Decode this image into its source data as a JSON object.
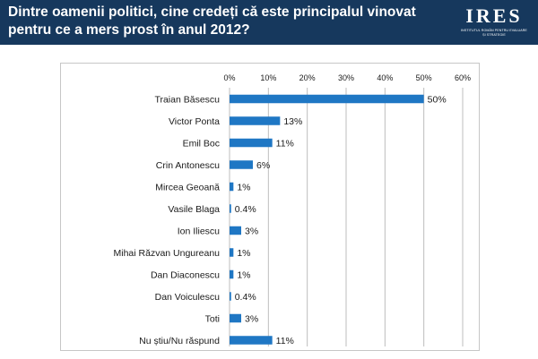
{
  "header": {
    "title_line1": "Dintre oamenii politici, cine credeți că este principalul vinovat",
    "title_line2": "pentru ce a mers prost în anul 2012?",
    "logo_word": "IRES",
    "logo_sub": "Institutul Român pentru Evaluare și Strategie"
  },
  "colors": {
    "header_bg": "#16385d",
    "bar": "#1f77c4",
    "grid": "#bdbdbd"
  },
  "chart_data": {
    "type": "bar",
    "orientation": "horizontal",
    "title": "Dintre oamenii politici, cine credeți că este principalul vinovat pentru ce a mers prost în anul 2012?",
    "categories": [
      "Traian Băsescu",
      "Victor Ponta",
      "Emil Boc",
      "Crin Antonescu",
      "Mircea Geoană",
      "Vasile Blaga",
      "Ion Iliescu",
      "Mihai Răzvan Ungureanu",
      "Dan Diaconescu",
      "Dan Voiculescu",
      "Toti",
      "Nu știu/Nu răspund"
    ],
    "values": [
      50,
      13,
      11,
      6,
      1,
      0.4,
      3,
      1,
      1,
      0.4,
      3,
      11
    ],
    "value_labels": [
      "50%",
      "13%",
      "11%",
      "6%",
      "1%",
      "0.4%",
      "3%",
      "1%",
      "1%",
      "0.4%",
      "3%",
      "11%"
    ],
    "xlim": [
      0,
      60
    ],
    "xticks": [
      0,
      10,
      20,
      30,
      40,
      50,
      60
    ],
    "xtick_labels": [
      "0%",
      "10%",
      "20%",
      "30%",
      "40%",
      "50%",
      "60%"
    ],
    "axis_position": "top",
    "grid": true,
    "legend": "none"
  }
}
